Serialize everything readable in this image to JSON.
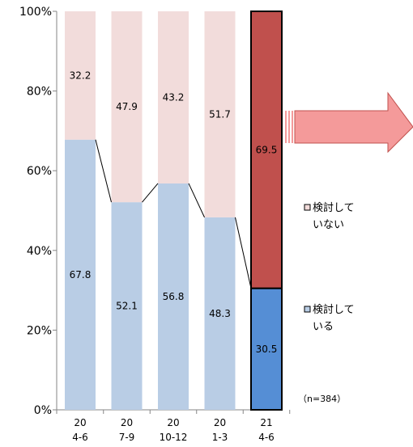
{
  "chart_data": {
    "type": "bar",
    "stacked": true,
    "percent": true,
    "categories": [
      [
        "20",
        "4-6"
      ],
      [
        "20",
        "7-9"
      ],
      [
        "20",
        "10-12"
      ],
      [
        "20",
        "1-3"
      ],
      [
        "21",
        "4-6"
      ]
    ],
    "series": [
      {
        "name": "検討して\nいる",
        "values": [
          67.8,
          52.1,
          56.8,
          48.3,
          30.5
        ]
      },
      {
        "name": "検討して\nいない",
        "values": [
          32.2,
          47.9,
          43.2,
          51.7,
          69.5
        ]
      }
    ],
    "y_ticks": [
      "0%",
      "20%",
      "40%",
      "60%",
      "80%",
      "100%"
    ],
    "ylim": [
      0,
      100
    ],
    "legend": {
      "placement": "right",
      "items": [
        {
          "label_lines": [
            "検討して",
            "いない"
          ]
        },
        {
          "label_lines": [
            "検討して",
            "いる"
          ]
        }
      ]
    },
    "note": "（n=384）",
    "colors": {
      "past_bottom": "#b9cde5",
      "past_top": "#f2dcdb",
      "highlight_bottom": "#558ed5",
      "highlight_top": "#c0504d",
      "arrow": "#f49a9a",
      "axis": "#868686",
      "connector": "#000000"
    },
    "grid": false,
    "highlight_index": 4
  }
}
